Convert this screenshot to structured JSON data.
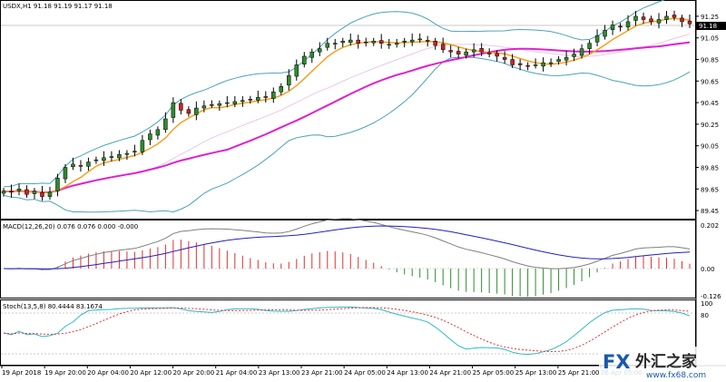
{
  "main": {
    "header": "USDX,H1  91.18 91.19 91.17 91.18",
    "price_axis": [
      "91.25",
      "91.05",
      "90.85",
      "90.65",
      "90.45",
      "90.25",
      "90.05",
      "89.85",
      "89.65",
      "89.45"
    ],
    "current_price": "91.18"
  },
  "macd": {
    "header": "MACD(12,26,20) 0.076 0.076 0.000 -0.000",
    "axis": [
      "0.202",
      "0.00",
      "-0.126"
    ]
  },
  "stoch": {
    "header": "Stoch(13,5,8) 80.4444 83.1674",
    "axis": [
      "100",
      "80"
    ]
  },
  "time_axis": [
    "19 Apr 2018",
    "19 Apr 20:00",
    "20 Apr 04:00",
    "20 Apr 12:00",
    "20 Apr 20:00",
    "21 Apr 04:00",
    "23 Apr 13:00",
    "23 Apr 21:00",
    "24 Apr 05:00",
    "24 Apr 13:00",
    "24 Apr 21:00",
    "25 Apr 05:00",
    "25 Apr 13:00",
    "25 Apr 21:00",
    "26 Apr 05:00"
  ],
  "watermark": {
    "brand": "FX",
    "cn": "外汇之家",
    "url": "www.fx68.com"
  },
  "colors": {
    "bull": "#2e8b2e",
    "bear": "#d02020",
    "bollinger": "#4aa3b8",
    "ma_fast": "#f5a020",
    "ma_slow": "#e020d0",
    "macd_main": "#7f7f7f",
    "macd_signal": "#2020c0",
    "stoch_main": "#30b8c8",
    "stoch_signal": "#e03030"
  },
  "chart_data": {
    "type": "candlestick",
    "symbol": "USDX",
    "timeframe": "H1",
    "ylim": [
      89.4,
      91.3
    ],
    "close_series": [
      89.63,
      89.62,
      89.65,
      89.6,
      89.63,
      89.58,
      89.62,
      89.75,
      89.85,
      89.88,
      89.86,
      89.9,
      89.92,
      89.94,
      89.95,
      89.97,
      89.98,
      90.0,
      90.1,
      90.16,
      90.2,
      90.3,
      90.45,
      90.38,
      90.35,
      90.4,
      90.42,
      90.43,
      90.44,
      90.45,
      90.46,
      90.47,
      90.48,
      90.5,
      90.5,
      90.55,
      90.6,
      90.7,
      90.8,
      90.88,
      90.92,
      90.95,
      91.0,
      91.0,
      91.02,
      91.03,
      91.0,
      91.01,
      91.02,
      91.0,
      90.99,
      91.0,
      91.02,
      91.03,
      91.04,
      91.02,
      90.98,
      90.94,
      90.92,
      90.9,
      90.92,
      90.94,
      90.92,
      90.9,
      90.88,
      90.85,
      90.8,
      90.8,
      90.79,
      90.8,
      90.82,
      90.82,
      90.85,
      90.87,
      90.9,
      90.95,
      91.0,
      91.07,
      91.12,
      91.17,
      91.15,
      91.2,
      91.25,
      91.22,
      91.2,
      91.22,
      91.25,
      91.24,
      91.2,
      91.18
    ]
  }
}
